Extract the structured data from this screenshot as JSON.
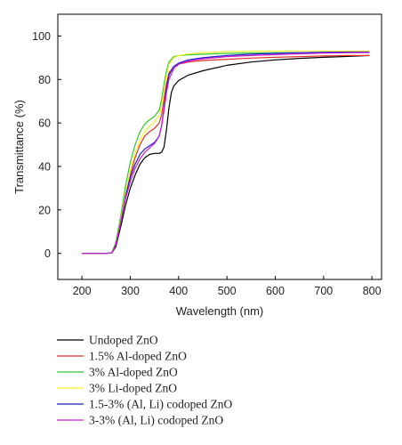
{
  "chart_data": {
    "type": "line",
    "xlabel": "Wavelength (nm)",
    "ylabel": "Transmittance (%)",
    "xlim": [
      150,
      820
    ],
    "ylim": [
      -12,
      110
    ],
    "xticks": [
      200,
      300,
      400,
      500,
      600,
      700,
      800
    ],
    "yticks": [
      0,
      20,
      40,
      60,
      80,
      100
    ],
    "grid": false,
    "legend_position": "below",
    "series": [
      {
        "name": "Undoped ZnO",
        "color": "#000000",
        "x": [
          200,
          250,
          262,
          270,
          280,
          290,
          300,
          310,
          320,
          330,
          340,
          350,
          360,
          365,
          370,
          375,
          380,
          385,
          390,
          400,
          420,
          450,
          500,
          550,
          600,
          650,
          700,
          750,
          795
        ],
        "y": [
          0,
          0,
          0.3,
          3,
          12,
          22,
          30,
          36,
          41,
          44,
          45.5,
          46,
          46,
          46.5,
          49,
          57,
          67,
          74,
          77,
          79.5,
          82,
          84,
          86.5,
          88,
          89,
          89.7,
          90.2,
          90.6,
          91
        ]
      },
      {
        "name": "1.5% Al-doped ZnO",
        "color": "#e0302a",
        "x": [
          200,
          250,
          262,
          270,
          280,
          290,
          300,
          310,
          320,
          330,
          340,
          350,
          360,
          365,
          370,
          375,
          380,
          390,
          400,
          420,
          450,
          500,
          550,
          600,
          650,
          700,
          750,
          795
        ],
        "y": [
          0,
          0,
          0.3,
          4,
          14,
          26,
          36,
          44,
          50,
          54,
          56,
          57.5,
          60,
          64,
          71,
          78,
          83,
          86,
          87,
          88,
          88.7,
          89.3,
          89.8,
          90.2,
          90.5,
          90.8,
          91,
          91
        ]
      },
      {
        "name": "3% Al-doped ZnO",
        "color": "#30c830",
        "x": [
          200,
          250,
          262,
          270,
          280,
          290,
          300,
          310,
          320,
          330,
          340,
          350,
          360,
          365,
          370,
          375,
          380,
          390,
          400,
          420,
          450,
          500,
          550,
          600,
          650,
          700,
          750,
          795
        ],
        "y": [
          0,
          0,
          0.3,
          5,
          17,
          31,
          42,
          50,
          56,
          59.5,
          61.5,
          63,
          66,
          71,
          78,
          84,
          88,
          90.5,
          91,
          91.3,
          91.6,
          92,
          92.2,
          92.3,
          92.3,
          92.4,
          92.4,
          92.4
        ]
      },
      {
        "name": "3% Li-doped ZnO",
        "color": "#f2f22a",
        "x": [
          200,
          250,
          262,
          270,
          280,
          290,
          300,
          310,
          320,
          330,
          340,
          350,
          360,
          365,
          370,
          375,
          380,
          390,
          400,
          420,
          450,
          500,
          550,
          600,
          650,
          700,
          750,
          795
        ],
        "y": [
          0,
          0,
          0.3,
          4,
          15,
          28,
          38,
          46,
          52,
          56,
          58.5,
          60.5,
          63.5,
          68,
          75,
          82,
          87,
          90,
          91,
          91.8,
          92.3,
          92.8,
          93,
          93.1,
          93.1,
          93.1,
          93,
          93
        ]
      },
      {
        "name": "1.5-3% (Al, Li) codoped ZnO",
        "color": "#1a1acc",
        "x": [
          200,
          250,
          262,
          270,
          280,
          290,
          300,
          310,
          320,
          330,
          340,
          350,
          360,
          365,
          370,
          375,
          380,
          390,
          400,
          420,
          450,
          500,
          550,
          600,
          650,
          700,
          750,
          795
        ],
        "y": [
          0,
          0,
          0.3,
          4,
          14,
          26,
          35,
          41,
          45.5,
          48,
          49.5,
          51,
          54,
          59,
          67,
          76,
          82,
          86,
          87.5,
          89,
          90,
          91,
          91.6,
          92,
          92.3,
          92.5,
          92.6,
          92.6
        ]
      },
      {
        "name": "3-3% (Al, Li) codoped ZnO",
        "color": "#cc1ecc",
        "x": [
          200,
          250,
          262,
          270,
          280,
          290,
          300,
          310,
          320,
          330,
          340,
          350,
          360,
          365,
          370,
          375,
          380,
          390,
          400,
          420,
          450,
          500,
          550,
          600,
          650,
          700,
          750,
          795
        ],
        "y": [
          0,
          0,
          0.3,
          4,
          14,
          25,
          33,
          39,
          43.5,
          46.5,
          48.5,
          50.5,
          54,
          59,
          66,
          74,
          80,
          85,
          87,
          88.5,
          89.5,
          90.5,
          91,
          91.4,
          91.8,
          92.1,
          92.3,
          92.4
        ]
      }
    ]
  }
}
